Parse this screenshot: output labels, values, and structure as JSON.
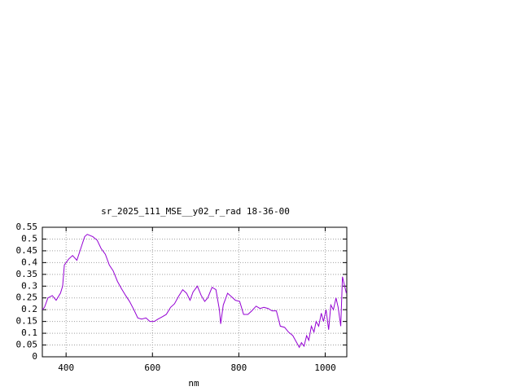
{
  "chart_data": {
    "type": "line",
    "title": "sr_2025_111_MSE__y02_r_rad 18-36-00",
    "x_label": "nm",
    "x": [
      345,
      350,
      358,
      368,
      377,
      387,
      392,
      396,
      406,
      415,
      425,
      434,
      443,
      449,
      462,
      472,
      481,
      491,
      500,
      509,
      519,
      528,
      538,
      547,
      557,
      566,
      575,
      585,
      594,
      604,
      613,
      623,
      632,
      642,
      651,
      660,
      670,
      679,
      687,
      694,
      704,
      713,
      721,
      728,
      738,
      747,
      755,
      758,
      764,
      774,
      783,
      792,
      802,
      811,
      821,
      830,
      840,
      849,
      858,
      868,
      877,
      887,
      896,
      906,
      915,
      925,
      934,
      940,
      945,
      951,
      957,
      962,
      968,
      974,
      979,
      985,
      991,
      996,
      1002,
      1008,
      1013,
      1019,
      1025,
      1030,
      1036,
      1040,
      1045,
      1049
    ],
    "series": [
      {
        "name": "sr_2025_111_MSE__y02_r_rad",
        "color": "#9400d3",
        "values": [
          0.2,
          0.21,
          0.25,
          0.26,
          0.24,
          0.27,
          0.3,
          0.39,
          0.415,
          0.43,
          0.41,
          0.46,
          0.51,
          0.52,
          0.51,
          0.495,
          0.46,
          0.435,
          0.39,
          0.365,
          0.32,
          0.29,
          0.26,
          0.235,
          0.2,
          0.165,
          0.16,
          0.165,
          0.15,
          0.15,
          0.16,
          0.17,
          0.18,
          0.21,
          0.225,
          0.255,
          0.285,
          0.27,
          0.24,
          0.275,
          0.3,
          0.26,
          0.235,
          0.25,
          0.295,
          0.285,
          0.2,
          0.14,
          0.22,
          0.27,
          0.255,
          0.24,
          0.235,
          0.18,
          0.18,
          0.195,
          0.215,
          0.205,
          0.21,
          0.205,
          0.195,
          0.195,
          0.13,
          0.125,
          0.105,
          0.09,
          0.06,
          0.04,
          0.06,
          0.045,
          0.09,
          0.07,
          0.13,
          0.105,
          0.15,
          0.13,
          0.185,
          0.15,
          0.2,
          0.115,
          0.22,
          0.2,
          0.25,
          0.21,
          0.13,
          0.34,
          0.3,
          0.27
        ]
      }
    ],
    "xlim": [
      345,
      1050
    ],
    "ylim": [
      0,
      0.55
    ],
    "xticks": [
      400,
      600,
      800,
      1000
    ],
    "yticks": [
      0,
      0.05,
      0.1,
      0.15,
      0.2,
      0.25,
      0.3,
      0.35,
      0.4,
      0.45,
      0.5,
      0.55
    ],
    "grid": true
  }
}
